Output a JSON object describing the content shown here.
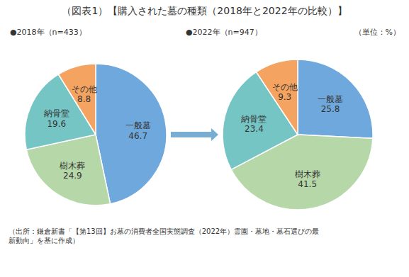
{
  "chart_data": {
    "type": "pie",
    "title": "（図表1）【購入された墓の種類（2018年と2022年の比較）】",
    "categories": [
      "一般墓",
      "樹木葬",
      "納骨堂",
      "その他"
    ],
    "series": [
      {
        "name": "●2018年（n=433）",
        "values": [
          46.7,
          24.9,
          19.6,
          8.8
        ],
        "colors": [
          "#6fa8dc",
          "#b6d7a8",
          "#76c5c5",
          "#f4a460"
        ]
      },
      {
        "name": "●2022年（n=947）",
        "values": [
          25.8,
          41.5,
          23.4,
          9.3
        ],
        "colors": [
          "#6fa8dc",
          "#b6d7a8",
          "#76c5c5",
          "#f4a460"
        ]
      }
    ],
    "data_labels": true,
    "annotations": [
      "（単位：%）",
      "（出所：鎌倉新書「【第13回】お墓の消費者全国実態調査（2022年）霊園・墓地・墓石選びの最\n新動向」を基に作成）"
    ]
  }
}
